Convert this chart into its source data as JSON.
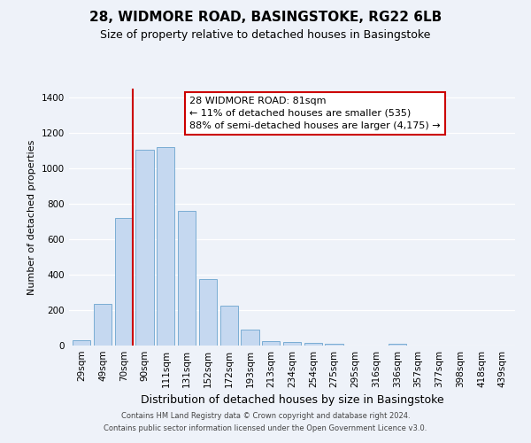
{
  "title": "28, WIDMORE ROAD, BASINGSTOKE, RG22 6LB",
  "subtitle": "Size of property relative to detached houses in Basingstoke",
  "xlabel": "Distribution of detached houses by size in Basingstoke",
  "ylabel": "Number of detached properties",
  "bar_labels": [
    "29sqm",
    "49sqm",
    "70sqm",
    "90sqm",
    "111sqm",
    "131sqm",
    "152sqm",
    "172sqm",
    "193sqm",
    "213sqm",
    "234sqm",
    "254sqm",
    "275sqm",
    "295sqm",
    "316sqm",
    "336sqm",
    "357sqm",
    "377sqm",
    "398sqm",
    "418sqm",
    "439sqm"
  ],
  "bar_values": [
    30,
    235,
    720,
    1105,
    1120,
    760,
    375,
    225,
    90,
    27,
    20,
    15,
    10,
    0,
    0,
    10,
    0,
    0,
    0,
    0,
    0
  ],
  "bar_color": "#c5d8f0",
  "bar_edge_color": "#7aadd4",
  "vline_color": "#cc0000",
  "vline_x": 2.425,
  "ylim": [
    0,
    1450
  ],
  "yticks": [
    0,
    200,
    400,
    600,
    800,
    1000,
    1200,
    1400
  ],
  "annotation_text": "28 WIDMORE ROAD: 81sqm\n← 11% of detached houses are smaller (535)\n88% of semi-detached houses are larger (4,175) →",
  "annotation_box_color": "#ffffff",
  "annotation_box_edge": "#cc0000",
  "footer_line1": "Contains HM Land Registry data © Crown copyright and database right 2024.",
  "footer_line2": "Contains public sector information licensed under the Open Government Licence v3.0.",
  "background_color": "#eef2f9",
  "grid_color": "#ffffff",
  "title_fontsize": 11,
  "subtitle_fontsize": 9,
  "xlabel_fontsize": 9,
  "ylabel_fontsize": 8,
  "tick_fontsize": 7.5,
  "annotation_fontsize": 8
}
